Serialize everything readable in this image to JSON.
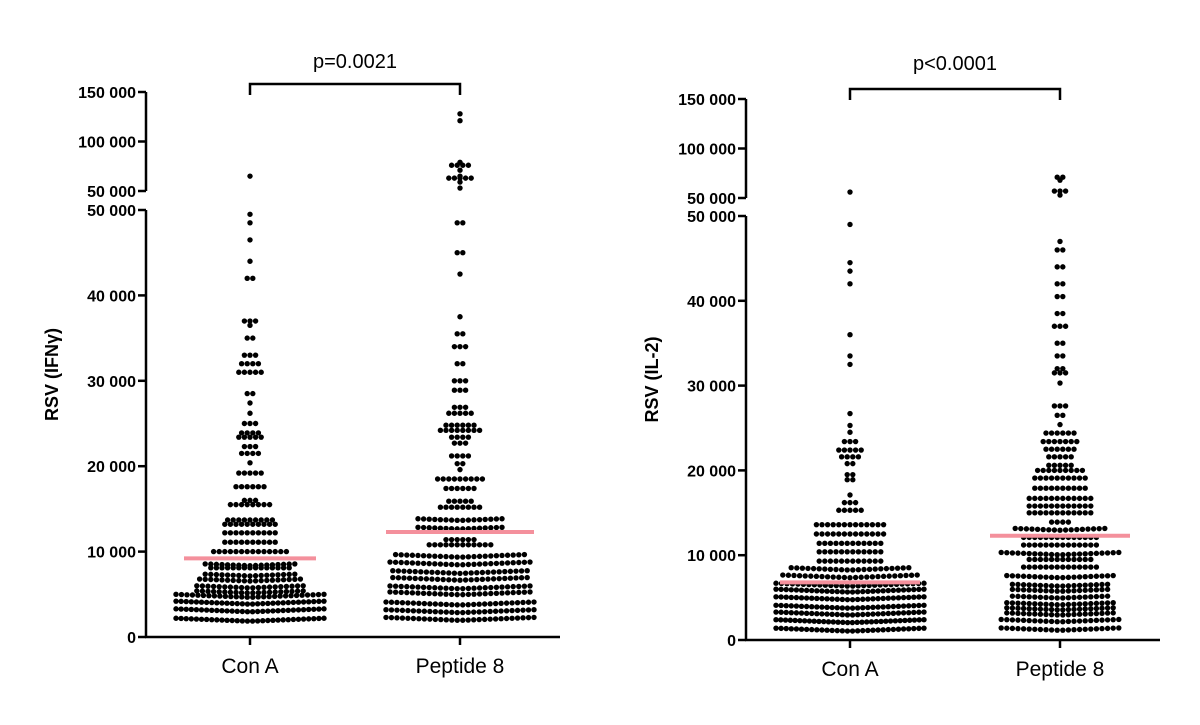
{
  "chart_data": [
    {
      "type": "scatter",
      "subtype": "dot-plot (swarm) with broken y-axis",
      "ylabel": "RSV (IFNγ)",
      "categories": [
        "Con A",
        "Peptide 8"
      ],
      "ylim_lower": [
        0,
        50000
      ],
      "ylim_upper": [
        50000,
        150000
      ],
      "yticks_lower": [
        {
          "v": 0,
          "label": "0"
        },
        {
          "v": 10000,
          "label": "10 000"
        },
        {
          "v": 20000,
          "label": "20 000"
        },
        {
          "v": 30000,
          "label": "30 000"
        },
        {
          "v": 40000,
          "label": "40 000"
        },
        {
          "v": 50000,
          "label": "50 000"
        }
      ],
      "yticks_upper": [
        {
          "v": 50000,
          "label": "50 000"
        },
        {
          "v": 100000,
          "label": "100 000"
        },
        {
          "v": 150000,
          "label": "150 000"
        }
      ],
      "comparison": {
        "label": "p=0.0021"
      },
      "median_color": "#f4909c",
      "groups": [
        {
          "name": "Con A",
          "median": 9200,
          "rows": [
            [
              2200,
              30
            ],
            [
              3300,
              30
            ],
            [
              4200,
              30
            ],
            [
              5000,
              28
            ],
            [
              5500,
              20
            ],
            [
              6100,
              20
            ],
            [
              6900,
              19
            ],
            [
              7500,
              17
            ],
            [
              8100,
              15
            ],
            [
              8700,
              17
            ],
            [
              10000,
              14
            ],
            [
              11100,
              10
            ],
            [
              12200,
              10
            ],
            [
              13200,
              10
            ],
            [
              13700,
              9
            ],
            [
              15500,
              8
            ],
            [
              16000,
              3
            ],
            [
              17600,
              6
            ],
            [
              19200,
              5
            ],
            [
              20400,
              1
            ],
            [
              21500,
              4
            ],
            [
              22300,
              3
            ],
            [
              23400,
              5
            ],
            [
              23900,
              4
            ],
            [
              25000,
              3
            ],
            [
              26200,
              1
            ],
            [
              27400,
              1
            ],
            [
              28500,
              2
            ],
            [
              31000,
              5
            ],
            [
              32000,
              4
            ],
            [
              33000,
              3
            ],
            [
              35000,
              2
            ],
            [
              36500,
              1
            ],
            [
              37000,
              3
            ],
            [
              42000,
              2
            ],
            [
              44000,
              1
            ],
            [
              46500,
              1
            ],
            [
              48500,
              1
            ],
            [
              49500,
              1
            ],
            [
              65000,
              1
            ]
          ]
        },
        {
          "name": "Peptide 8",
          "median": 12300,
          "rows": [
            [
              2300,
              28
            ],
            [
              3200,
              28
            ],
            [
              4100,
              28
            ],
            [
              5300,
              26
            ],
            [
              6000,
              26
            ],
            [
              7000,
              25
            ],
            [
              7800,
              25
            ],
            [
              8800,
              26
            ],
            [
              9700,
              24
            ],
            [
              10800,
              12
            ],
            [
              11400,
              6
            ],
            [
              13000,
              16
            ],
            [
              14000,
              16
            ],
            [
              15200,
              8
            ],
            [
              15900,
              5
            ],
            [
              17400,
              6
            ],
            [
              18500,
              9
            ],
            [
              19600,
              1
            ],
            [
              20300,
              2
            ],
            [
              21200,
              4
            ],
            [
              22700,
              3
            ],
            [
              23400,
              4
            ],
            [
              24200,
              8
            ],
            [
              24800,
              6
            ],
            [
              26200,
              5
            ],
            [
              26900,
              3
            ],
            [
              28900,
              3
            ],
            [
              30000,
              3
            ],
            [
              32000,
              2
            ],
            [
              34000,
              3
            ],
            [
              35500,
              2
            ],
            [
              37500,
              1
            ],
            [
              42500,
              1
            ],
            [
              45000,
              2
            ],
            [
              48500,
              2
            ],
            [
              53000,
              1
            ],
            [
              59000,
              1
            ],
            [
              63000,
              5
            ],
            [
              65000,
              1
            ],
            [
              71000,
              1
            ],
            [
              76000,
              4
            ],
            [
              79000,
              1
            ],
            [
              121000,
              1
            ],
            [
              128000,
              1
            ]
          ]
        }
      ]
    },
    {
      "type": "scatter",
      "subtype": "dot-plot (swarm) with broken y-axis",
      "ylabel": "RSV (IL-2)",
      "categories": [
        "Con A",
        "Peptide 8"
      ],
      "ylim_lower": [
        0,
        50000
      ],
      "ylim_upper": [
        50000,
        150000
      ],
      "yticks_lower": [
        {
          "v": 0,
          "label": "0"
        },
        {
          "v": 10000,
          "label": "10 000"
        },
        {
          "v": 20000,
          "label": "20 000"
        },
        {
          "v": 30000,
          "label": "30 000"
        },
        {
          "v": 40000,
          "label": "40 000"
        },
        {
          "v": 50000,
          "label": "50 000"
        }
      ],
      "yticks_upper": [
        {
          "v": 50000,
          "label": "50 000"
        },
        {
          "v": 100000,
          "label": "100 000"
        },
        {
          "v": 150000,
          "label": "150 000"
        }
      ],
      "comparison": {
        "label": "p<0.0001"
      },
      "median_color": "#f4909c",
      "groups": [
        {
          "name": "Con A",
          "median": 6800,
          "rows": [
            [
              1400,
              30
            ],
            [
              2400,
              32
            ],
            [
              3300,
              30
            ],
            [
              4100,
              30
            ],
            [
              5100,
              30
            ],
            [
              6000,
              30
            ],
            [
              6700,
              28
            ],
            [
              7700,
              25
            ],
            [
              8600,
              22
            ],
            [
              9300,
              12
            ],
            [
              10400,
              12
            ],
            [
              11400,
              12
            ],
            [
              12500,
              13
            ],
            [
              13600,
              13
            ],
            [
              15300,
              5
            ],
            [
              16200,
              3
            ],
            [
              17100,
              1
            ],
            [
              18900,
              2
            ],
            [
              19500,
              2
            ],
            [
              20800,
              2
            ],
            [
              21600,
              4
            ],
            [
              22400,
              5
            ],
            [
              23400,
              3
            ],
            [
              24500,
              1
            ],
            [
              25300,
              1
            ],
            [
              26700,
              1
            ],
            [
              32500,
              1
            ],
            [
              33500,
              1
            ],
            [
              36000,
              1
            ],
            [
              42000,
              1
            ],
            [
              43500,
              1
            ],
            [
              44500,
              1
            ],
            [
              49000,
              1
            ],
            [
              56000,
              1
            ]
          ]
        },
        {
          "name": "Peptide 8",
          "median": 12300,
          "rows": [
            [
              1500,
              22
            ],
            [
              2500,
              22
            ],
            [
              3300,
              20
            ],
            [
              3900,
              20
            ],
            [
              4500,
              20
            ],
            [
              5300,
              18
            ],
            [
              6100,
              18
            ],
            [
              6700,
              18
            ],
            [
              7700,
              20
            ],
            [
              8600,
              14
            ],
            [
              9500,
              12
            ],
            [
              10400,
              22
            ],
            [
              11200,
              14
            ],
            [
              12100,
              14
            ],
            [
              13300,
              17
            ],
            [
              13900,
              4
            ],
            [
              15000,
              12
            ],
            [
              15800,
              12
            ],
            [
              16700,
              12
            ],
            [
              17900,
              10
            ],
            [
              19100,
              10
            ],
            [
              20000,
              9
            ],
            [
              20600,
              5
            ],
            [
              21600,
              5
            ],
            [
              22500,
              6
            ],
            [
              23400,
              7
            ],
            [
              24400,
              6
            ],
            [
              25400,
              1
            ],
            [
              26500,
              2
            ],
            [
              27600,
              3
            ],
            [
              30300,
              1
            ],
            [
              31500,
              3
            ],
            [
              32000,
              2
            ],
            [
              33500,
              2
            ],
            [
              35000,
              2
            ],
            [
              37000,
              3
            ],
            [
              38500,
              2
            ],
            [
              40500,
              2
            ],
            [
              42000,
              2
            ],
            [
              44000,
              2
            ],
            [
              46000,
              2
            ],
            [
              47000,
              1
            ],
            [
              53000,
              1
            ],
            [
              57000,
              3
            ],
            [
              68000,
              1
            ],
            [
              71000,
              2
            ]
          ]
        }
      ]
    }
  ]
}
